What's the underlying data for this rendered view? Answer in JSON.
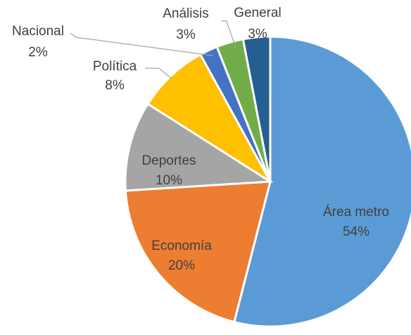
{
  "chart_data": {
    "type": "pie",
    "slices": [
      {
        "name": "Área metro",
        "value": 54,
        "label": "54%",
        "color": "#5b9bd5"
      },
      {
        "name": "Economía",
        "value": 20,
        "label": "20%",
        "color": "#ed7d31"
      },
      {
        "name": "Deportes",
        "value": 10,
        "label": "10%",
        "color": "#a5a5a5"
      },
      {
        "name": "Política",
        "value": 8,
        "label": "8%",
        "color": "#ffc000"
      },
      {
        "name": "Nacional",
        "value": 2,
        "label": "2%",
        "color": "#4472c4"
      },
      {
        "name": "Análisis",
        "value": 3,
        "label": "3%",
        "color": "#70ad47"
      },
      {
        "name": "General",
        "value": 3,
        "label": "3%",
        "color": "#255e91"
      }
    ],
    "start": "12 o'clock",
    "direction": "clockwise",
    "legend": "none",
    "data_labels": "category name and percentage"
  }
}
